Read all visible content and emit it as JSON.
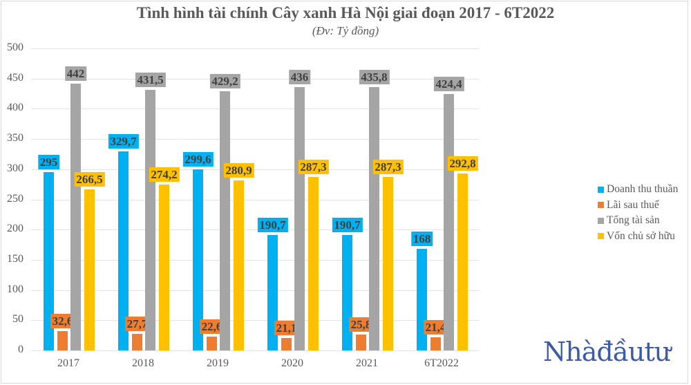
{
  "chart_data": {
    "type": "bar",
    "title": "Tình hình tài chính Cây xanh Hà Nội giai đoạn 2017 - 6T2022",
    "subtitle": "(Đv: Tỷ đồng)",
    "xlabel": "",
    "ylabel": "",
    "ylim": [
      0,
      500
    ],
    "yticks": [
      0,
      50,
      100,
      150,
      200,
      250,
      300,
      350,
      400,
      450,
      500
    ],
    "grid": true,
    "legend_position": "right",
    "categories": [
      "2017",
      "2018",
      "2019",
      "2020",
      "2021",
      "6T2022"
    ],
    "series": [
      {
        "name": "Doanh thu thuần",
        "color": "#00b0f0",
        "values": [
          295,
          329.7,
          299.6,
          190.7,
          190.7,
          168
        ],
        "labels": [
          "295",
          "329,7",
          "299,6",
          "190,7",
          "190,7",
          "168"
        ]
      },
      {
        "name": "Lãi sau thuế",
        "color": "#ed7d31",
        "values": [
          32.6,
          27.7,
          22.6,
          21.1,
          25.8,
          21.4
        ],
        "labels": [
          "32,6",
          "27,7",
          "22,6",
          "21,1",
          "25,8",
          "21,4"
        ]
      },
      {
        "name": "Tổng tài sản",
        "color": "#a5a5a5",
        "values": [
          442,
          431.5,
          429.2,
          436,
          435.8,
          424.4
        ],
        "labels": [
          "442",
          "431,5",
          "429,2",
          "436",
          "435,8",
          "424,4"
        ]
      },
      {
        "name": "Vốn chủ sở hữu",
        "color": "#ffc000",
        "values": [
          266.5,
          274.2,
          280.9,
          287.3,
          287.3,
          292.8
        ],
        "labels": [
          "266,5",
          "274,2",
          "280,9",
          "287,3",
          "287,3",
          "292,8"
        ]
      }
    ]
  },
  "header": {
    "title": "Tình hình tài chính Cây xanh Hà Nội giai đoạn 2017 - 6T2022",
    "subtitle": "(Đv: Tỷ đồng)"
  },
  "branding": {
    "logo_text": "Nhàđầutư",
    "logo_color": "#3d5ba3"
  }
}
